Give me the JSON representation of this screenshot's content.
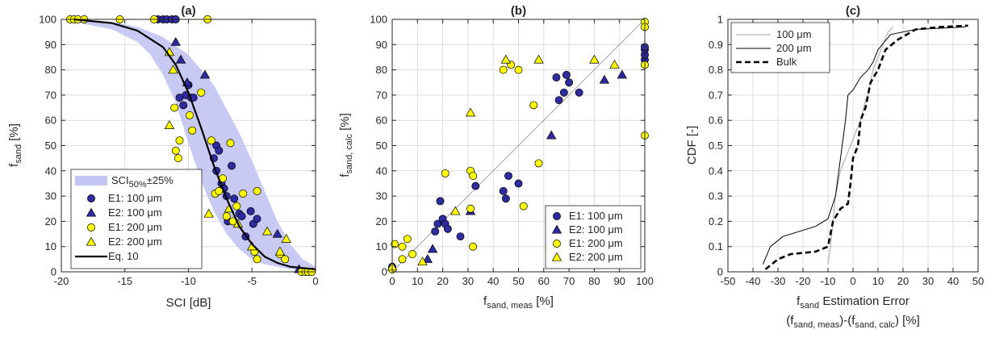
{
  "colors": {
    "blue": "#2e2a9f",
    "yellow": "#ffff00",
    "band": "#c2c4f3",
    "black": "#000000",
    "gray": "#a6a6a6"
  },
  "chart_data": [
    {
      "type": "scatter",
      "title": "(a)",
      "xlabel": "SCI [dB]",
      "ylabel_main": "f",
      "ylabel_sub": "sand",
      "ylabel_unit": "[%]",
      "xlim": [
        -20,
        0
      ],
      "ylim": [
        0,
        100
      ],
      "xticks": [
        -20,
        -15,
        -10,
        -5,
        0
      ],
      "yticks": [
        0,
        10,
        20,
        30,
        40,
        50,
        60,
        70,
        80,
        90,
        100
      ],
      "grid": true,
      "legend_position": "bottom-left",
      "legend": {
        "band_main": "SCI",
        "band_sub": "50%",
        "band_tail": "±25%",
        "e1_100": "E1: 100 μm",
        "e2_100": "E2: 100 μm",
        "e1_200": "E1: 200 μm",
        "e2_200": "E2: 200 μm",
        "eq": "Eq. 10"
      },
      "band": {
        "upper": [
          [
            -19,
            100
          ],
          [
            -16,
            99
          ],
          [
            -14,
            97
          ],
          [
            -12,
            93
          ],
          [
            -10,
            86
          ],
          [
            -8,
            74
          ],
          [
            -6,
            55
          ],
          [
            -5,
            44
          ],
          [
            -4,
            32
          ],
          [
            -3,
            20
          ],
          [
            -2,
            11
          ],
          [
            -1,
            5
          ],
          [
            0,
            2
          ]
        ],
        "lower": [
          [
            -19,
            99
          ],
          [
            -16,
            96
          ],
          [
            -14,
            91
          ],
          [
            -13,
            86
          ],
          [
            -12,
            78
          ],
          [
            -11,
            67
          ],
          [
            -10,
            51
          ],
          [
            -9,
            36
          ],
          [
            -8,
            24
          ],
          [
            -7,
            15
          ],
          [
            -6,
            9
          ],
          [
            -5,
            5
          ],
          [
            -4,
            3
          ],
          [
            -2,
            1
          ],
          [
            0,
            0
          ]
        ]
      },
      "curve": [
        [
          -19,
          100
        ],
        [
          -16,
          98.5
        ],
        [
          -14,
          95.5
        ],
        [
          -12,
          89
        ],
        [
          -11,
          82
        ],
        [
          -10,
          71
        ],
        [
          -9,
          57
        ],
        [
          -8,
          42
        ],
        [
          -7,
          29
        ],
        [
          -6,
          18
        ],
        [
          -5,
          11
        ],
        [
          -4,
          6
        ],
        [
          -3,
          3.5
        ],
        [
          -2,
          2
        ],
        [
          0,
          1
        ]
      ],
      "series": [
        {
          "name": "E1: 100 μm",
          "marker": "circle",
          "color": "blue",
          "points": [
            [
              -12.4,
              100
            ],
            [
              -12,
              100
            ],
            [
              -11.7,
              100
            ],
            [
              -11.3,
              100
            ],
            [
              -11,
              100
            ],
            [
              -10.7,
              69
            ],
            [
              -10.4,
              66
            ],
            [
              -10.2,
              70
            ],
            [
              -10,
              74
            ],
            [
              -9.8,
              69
            ],
            [
              -9.6,
              69
            ],
            [
              -8,
              45
            ],
            [
              -7.8,
              50
            ],
            [
              -7.6,
              48
            ],
            [
              -7.8,
              40
            ],
            [
              -7.4,
              35
            ],
            [
              -7.2,
              33
            ],
            [
              -7,
              30
            ],
            [
              -6.9,
              20
            ],
            [
              -6.6,
              42
            ],
            [
              -6.4,
              29
            ],
            [
              -6,
              23
            ],
            [
              -5.8,
              22
            ],
            [
              -5.5,
              14
            ],
            [
              -5.1,
              24
            ],
            [
              -4.9,
              19
            ],
            [
              -4.6,
              21
            ]
          ]
        },
        {
          "name": "E2: 100 μm",
          "marker": "triangle",
          "color": "blue",
          "points": [
            [
              -11,
              91
            ],
            [
              -10.6,
              84
            ],
            [
              -10.1,
              75
            ],
            [
              -8.7,
              78
            ],
            [
              -3,
              15
            ],
            [
              -1.3,
              1
            ]
          ]
        },
        {
          "name": "E1: 200 μm",
          "marker": "circle",
          "color": "yellow",
          "points": [
            [
              -19.3,
              100
            ],
            [
              -19,
              100
            ],
            [
              -18.7,
              100
            ],
            [
              -18.2,
              100
            ],
            [
              -15.4,
              100
            ],
            [
              -12.7,
              100
            ],
            [
              -8.5,
              100
            ],
            [
              -11.1,
              65
            ],
            [
              -11,
              48
            ],
            [
              -10.8,
              45
            ],
            [
              -10.7,
              52
            ],
            [
              -9.9,
              62
            ],
            [
              -9.7,
              56
            ],
            [
              -9,
              71
            ],
            [
              -8.2,
              52
            ],
            [
              -7.9,
              31
            ],
            [
              -7.6,
              32
            ],
            [
              -7.3,
              37
            ],
            [
              -7,
              22
            ],
            [
              -6.7,
              51
            ],
            [
              -6.5,
              20
            ],
            [
              -6.2,
              26
            ],
            [
              -5.7,
              31
            ],
            [
              -4.6,
              32
            ],
            [
              -4.8,
              8
            ],
            [
              -4.6,
              5
            ],
            [
              -2.8,
              7
            ],
            [
              -2.4,
              5
            ],
            [
              -1.1,
              0
            ],
            [
              -0.8,
              0
            ],
            [
              -0.6,
              0
            ],
            [
              -0.3,
              0
            ]
          ]
        },
        {
          "name": "E2: 200 μm",
          "marker": "triangle",
          "color": "yellow",
          "points": [
            [
              -11.5,
              87
            ],
            [
              -11.2,
              80
            ],
            [
              -11.5,
              58
            ],
            [
              -10.5,
              32
            ],
            [
              -8.4,
              23
            ],
            [
              -6.8,
              25
            ],
            [
              -6.1,
              19
            ],
            [
              -5,
              10
            ],
            [
              -3.8,
              16
            ],
            [
              -2.8,
              8
            ],
            [
              -2.3,
              13
            ]
          ]
        }
      ]
    },
    {
      "type": "scatter",
      "title": "(b)",
      "xlabel_main": "f",
      "xlabel_sub": "sand, meas",
      "xlabel_unit": "[%]",
      "ylabel_main": "f",
      "ylabel_sub": "sand, calc",
      "ylabel_unit": "[%]",
      "xlim": [
        0,
        100
      ],
      "ylim": [
        0,
        100
      ],
      "xticks": [
        0,
        10,
        20,
        30,
        40,
        50,
        60,
        70,
        80,
        90,
        100
      ],
      "yticks": [
        0,
        10,
        20,
        30,
        40,
        50,
        60,
        70,
        80,
        90,
        100
      ],
      "grid": true,
      "legend_position": "bottom-right",
      "legend": {
        "e1_100": "E1: 100 μm",
        "e2_100": "E2: 100 μm",
        "e1_200": "E1: 200 μm",
        "e2_200": "E2: 200 μm"
      },
      "identity_line": [
        [
          0,
          0
        ],
        [
          100,
          100
        ]
      ],
      "series": [
        {
          "name": "E1: 100 μm",
          "marker": "circle",
          "color": "blue",
          "points": [
            [
              0,
              2
            ],
            [
              17,
              16
            ],
            [
              18,
              19
            ],
            [
              19,
              28
            ],
            [
              20,
              21
            ],
            [
              21,
              19
            ],
            [
              22,
              17
            ],
            [
              27,
              14
            ],
            [
              33,
              34
            ],
            [
              44,
              32
            ],
            [
              45,
              29
            ],
            [
              46,
              38
            ],
            [
              50,
              35
            ],
            [
              65,
              77
            ],
            [
              66,
              68
            ],
            [
              68,
              71
            ],
            [
              69,
              78
            ],
            [
              70,
              75
            ],
            [
              74,
              71
            ],
            [
              100,
              84
            ],
            [
              100,
              86
            ],
            [
              100,
              88
            ],
            [
              100,
              89
            ]
          ]
        },
        {
          "name": "E2: 100 μm",
          "marker": "triangle",
          "color": "blue",
          "points": [
            [
              14,
              5
            ],
            [
              16,
              9
            ],
            [
              31,
              24
            ],
            [
              63,
              54
            ],
            [
              84,
              76
            ],
            [
              91,
              78
            ]
          ]
        },
        {
          "name": "E1: 200 μm",
          "marker": "circle",
          "color": "yellow",
          "points": [
            [
              0,
              1
            ],
            [
              1,
              11
            ],
            [
              4,
              10
            ],
            [
              6,
              13
            ],
            [
              4,
              5
            ],
            [
              8,
              7
            ],
            [
              21,
              39
            ],
            [
              31,
              40
            ],
            [
              32,
              38
            ],
            [
              31,
              25
            ],
            [
              32,
              10
            ],
            [
              44,
              80
            ],
            [
              47,
              82
            ],
            [
              50,
              80
            ],
            [
              52,
              26
            ],
            [
              56,
              66
            ],
            [
              58,
              43
            ],
            [
              100,
              99
            ],
            [
              100,
              97
            ],
            [
              100,
              82
            ],
            [
              100,
              54
            ]
          ]
        },
        {
          "name": "E2: 200 μm",
          "marker": "triangle",
          "color": "yellow",
          "points": [
            [
              0,
              2
            ],
            [
              12,
              4
            ],
            [
              25,
              24
            ],
            [
              31,
              63
            ],
            [
              45,
              84
            ],
            [
              58,
              84
            ],
            [
              80,
              84
            ],
            [
              88,
              82
            ]
          ]
        }
      ]
    },
    {
      "type": "line",
      "title": "(c)",
      "xlabel_line1_main": "f",
      "xlabel_line1_sub": "sand",
      "xlabel_line1_rest": " Estimation Error",
      "xlabel_line2": [
        "(f",
        "sand, meas",
        ")-(f",
        "sand, calc",
        ") [%]"
      ],
      "ylabel": "CDF [-]",
      "xlim": [
        -50,
        50
      ],
      "ylim": [
        0,
        1
      ],
      "xticks": [
        -50,
        -40,
        -30,
        -20,
        -10,
        0,
        10,
        20,
        30,
        40,
        50
      ],
      "yticks": [
        "0",
        "0.1",
        "0.2",
        "0.3",
        "0.4",
        "0.5",
        "0.6",
        "0.7",
        "0.8",
        "0.9",
        "1"
      ],
      "grid": true,
      "legend_position": "top-left",
      "series": [
        {
          "name": "100 μm",
          "style": "thin-gray",
          "points": [
            [
              -10,
              0.03
            ],
            [
              -9,
              0.1
            ],
            [
              -8,
              0.2
            ],
            [
              -7,
              0.3
            ],
            [
              -5,
              0.4
            ],
            [
              -3,
              0.45
            ],
            [
              -1,
              0.5
            ],
            [
              1,
              0.55
            ],
            [
              3,
              0.6
            ],
            [
              5,
              0.68
            ],
            [
              6,
              0.7
            ],
            [
              8,
              0.8
            ],
            [
              10,
              0.85
            ],
            [
              12,
              0.9
            ],
            [
              14,
              0.95
            ],
            [
              16,
              0.97
            ]
          ]
        },
        {
          "name": "200 μm",
          "style": "thin-black",
          "points": [
            [
              -36,
              0.03
            ],
            [
              -33,
              0.1
            ],
            [
              -28,
              0.14
            ],
            [
              -15,
              0.18
            ],
            [
              -10,
              0.21
            ],
            [
              -7,
              0.3
            ],
            [
              -5,
              0.45
            ],
            [
              -3,
              0.6
            ],
            [
              -2,
              0.7
            ],
            [
              0,
              0.72
            ],
            [
              3,
              0.77
            ],
            [
              6,
              0.8
            ],
            [
              8,
              0.83
            ],
            [
              10,
              0.88
            ],
            [
              15,
              0.94
            ],
            [
              25,
              0.96
            ],
            [
              45,
              0.97
            ]
          ]
        },
        {
          "name": "Bulk",
          "style": "thick-dashed",
          "points": [
            [
              -35,
              0.01
            ],
            [
              -30,
              0.05
            ],
            [
              -25,
              0.07
            ],
            [
              -15,
              0.08
            ],
            [
              -10,
              0.1
            ],
            [
              -8,
              0.2
            ],
            [
              -5,
              0.25
            ],
            [
              -2,
              0.27
            ],
            [
              -1,
              0.35
            ],
            [
              0,
              0.45
            ],
            [
              2,
              0.5
            ],
            [
              3,
              0.6
            ],
            [
              5,
              0.65
            ],
            [
              7,
              0.75
            ],
            [
              10,
              0.8
            ],
            [
              13,
              0.88
            ],
            [
              18,
              0.92
            ],
            [
              25,
              0.96
            ],
            [
              35,
              0.97
            ],
            [
              46,
              0.975
            ]
          ]
        }
      ]
    }
  ]
}
